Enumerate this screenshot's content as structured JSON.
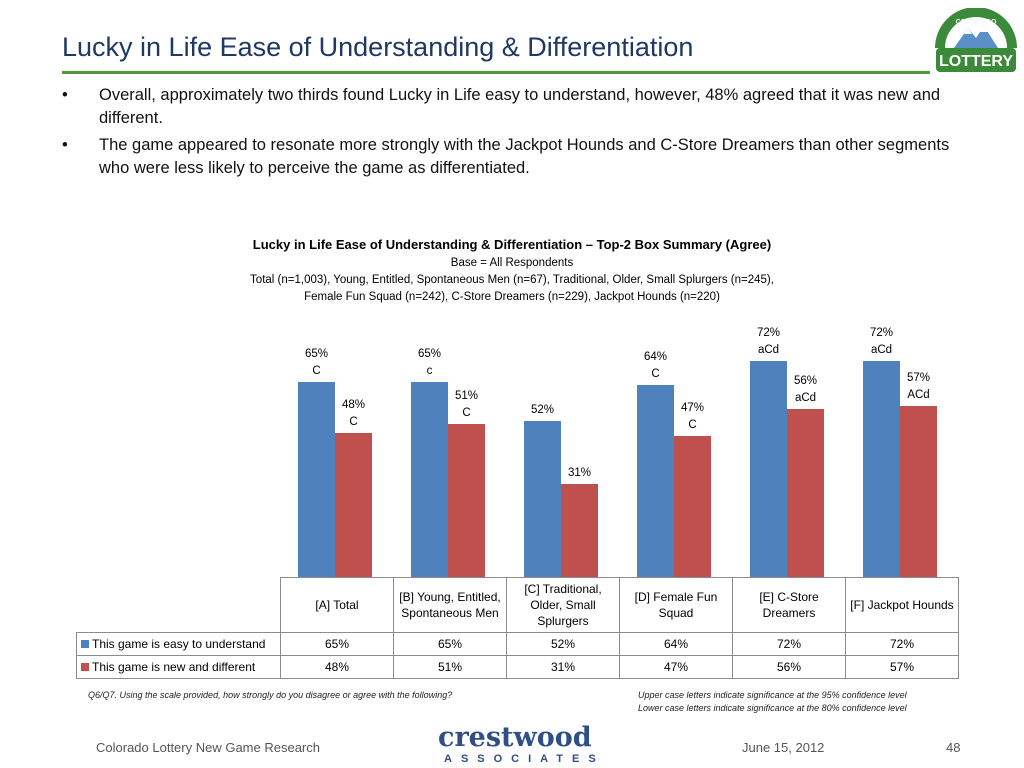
{
  "slide": {
    "title": "Lucky in Life Ease of Understanding & Differentiation",
    "bullets": [
      "Overall, approximately two thirds found Lucky in Life easy to understand, however, 48% agreed that it was new and different.",
      "The game appeared to resonate more strongly with the Jackpot Hounds and C-Store Dreamers than other segments who were less likely to perceive the game as differentiated."
    ],
    "bullet_glyph": "•"
  },
  "logo": {
    "arc_text": "COLORADO",
    "name": "LOTTERY"
  },
  "colors": {
    "series_easy": "#4f81bd",
    "series_new": "#c0504d",
    "title_rule": "#4e9a3a",
    "title_text": "#1f3864"
  },
  "chart_data": {
    "type": "bar",
    "title": "Lucky in Life Ease of Understanding & Differentiation – Top-2 Box Summary (Agree)",
    "subtitle_lines": [
      "Base = All Respondents",
      "Total (n=1,003), Young, Entitled, Spontaneous Men (n=67), Traditional, Older, Small Splurgers (n=245),",
      "Female Fun Squad (n=242), C-Store Dreamers (n=229), Jackpot Hounds (n=220)"
    ],
    "categories": [
      [
        "[A] Total"
      ],
      [
        "[B] Young, Entitled,",
        "Spontaneous Men"
      ],
      [
        "[C] Traditional,",
        "Older, Small",
        "Splurgers"
      ],
      [
        "[D] Female Fun",
        "Squad"
      ],
      [
        "[E] C-Store",
        "Dreamers"
      ],
      [
        "[F] Jackpot Hounds"
      ]
    ],
    "series": [
      {
        "name": "This game is easy to understand",
        "values": [
          65,
          65,
          52,
          64,
          72,
          72
        ],
        "labels": [
          "65%",
          "65%",
          "52%",
          "64%",
          "72%",
          "72%"
        ],
        "sig": [
          "C",
          "c",
          "",
          "C",
          "aCd",
          "aCd"
        ]
      },
      {
        "name": "This game is new and different",
        "values": [
          48,
          51,
          31,
          47,
          56,
          57
        ],
        "labels": [
          "48%",
          "51%",
          "31%",
          "47%",
          "56%",
          "57%"
        ],
        "sig": [
          "C",
          "C",
          "",
          "C",
          "aCd",
          "ACd"
        ]
      }
    ],
    "ylim": [
      0,
      100
    ],
    "grid": false,
    "legend": "data-table"
  },
  "footnotes": {
    "question": "Q6/Q7. Using the scale provided, how strongly do you disagree or agree with the following?",
    "sig_upper": "Upper case letters indicate significance at the 95% confidence level",
    "sig_lower": "Lower case letters indicate significance at the 80% confidence level"
  },
  "footer": {
    "left": "Colorado Lottery New Game Research",
    "brand_name": "crestwood",
    "brand_sub": "ASSOCIATES",
    "date": "June 15, 2012",
    "page": "48"
  }
}
